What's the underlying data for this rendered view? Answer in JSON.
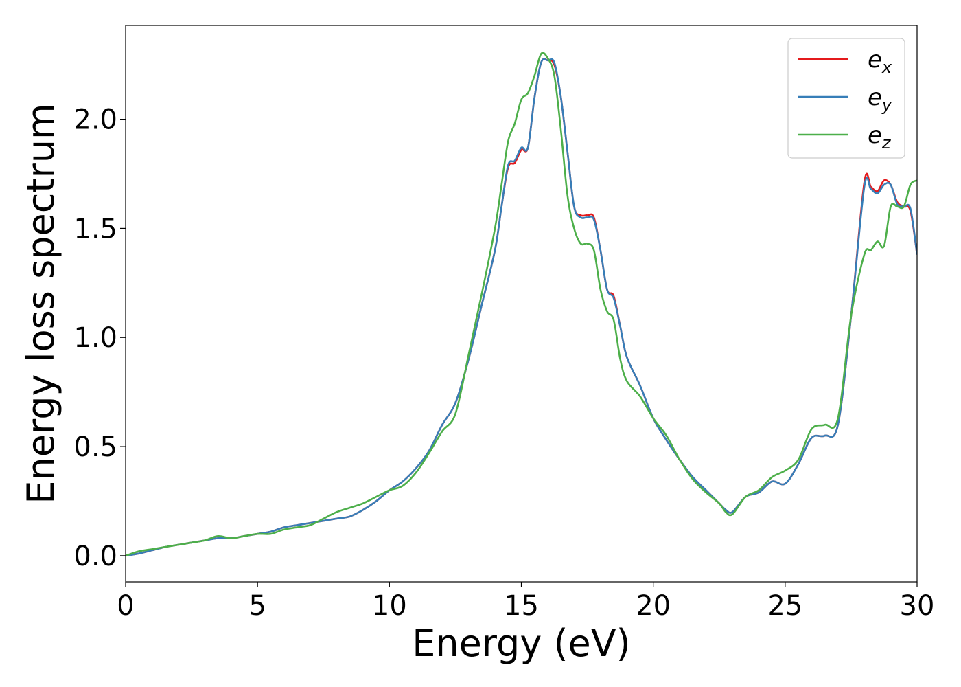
{
  "chart_data": {
    "type": "line",
    "title": "",
    "xlabel": "Energy (eV)",
    "ylabel": "Energy loss spectrum",
    "xlim": [
      0,
      30
    ],
    "ylim": [
      -0.12,
      2.43
    ],
    "xticks": [
      0,
      5,
      10,
      15,
      20,
      25,
      30
    ],
    "xtick_labels": [
      "0",
      "5",
      "10",
      "15",
      "20",
      "25",
      "30"
    ],
    "yticks": [
      0.0,
      0.5,
      1.0,
      1.5,
      2.0
    ],
    "ytick_labels": [
      "0.0",
      "0.5",
      "1.0",
      "1.5",
      "2.0"
    ],
    "grid": false,
    "legend_position": "top-right",
    "x": [
      0,
      0.5,
      1,
      1.5,
      2,
      2.5,
      3,
      3.5,
      4,
      4.5,
      5,
      5.5,
      6,
      6.5,
      7,
      7.5,
      8,
      8.5,
      9,
      9.5,
      10,
      10.5,
      11,
      11.5,
      12,
      12.5,
      13,
      13.5,
      14,
      14.25,
      14.5,
      14.75,
      15,
      15.25,
      15.5,
      15.75,
      16,
      16.25,
      16.5,
      16.75,
      17,
      17.25,
      17.5,
      17.75,
      18,
      18.25,
      18.5,
      18.75,
      19,
      19.5,
      20,
      20.5,
      21,
      21.5,
      22,
      22.5,
      22.75,
      23,
      23.5,
      24,
      24.5,
      25,
      25.5,
      26,
      26.5,
      27,
      27.5,
      28,
      28.25,
      28.5,
      28.75,
      29,
      29.25,
      29.5,
      29.75,
      30
    ],
    "series": [
      {
        "name": "e",
        "subscript": "x",
        "color": "#e41a1c",
        "values": [
          0.0,
          0.01,
          0.025,
          0.04,
          0.05,
          0.06,
          0.07,
          0.08,
          0.08,
          0.09,
          0.1,
          0.11,
          0.13,
          0.14,
          0.15,
          0.16,
          0.17,
          0.18,
          0.21,
          0.25,
          0.3,
          0.34,
          0.4,
          0.48,
          0.6,
          0.7,
          0.9,
          1.15,
          1.4,
          1.6,
          1.78,
          1.8,
          1.86,
          1.87,
          2.1,
          2.26,
          2.27,
          2.25,
          2.1,
          1.85,
          1.6,
          1.56,
          1.56,
          1.55,
          1.4,
          1.22,
          1.19,
          1.05,
          0.91,
          0.78,
          0.63,
          0.53,
          0.44,
          0.36,
          0.3,
          0.24,
          0.21,
          0.2,
          0.27,
          0.29,
          0.34,
          0.33,
          0.42,
          0.54,
          0.55,
          0.6,
          1.1,
          1.71,
          1.69,
          1.67,
          1.72,
          1.7,
          1.62,
          1.6,
          1.58,
          1.38
        ]
      },
      {
        "name": "e",
        "subscript": "y",
        "color": "#377eb8",
        "values": [
          0.0,
          0.01,
          0.025,
          0.04,
          0.05,
          0.06,
          0.07,
          0.08,
          0.08,
          0.09,
          0.1,
          0.11,
          0.13,
          0.14,
          0.15,
          0.16,
          0.17,
          0.18,
          0.21,
          0.25,
          0.3,
          0.34,
          0.4,
          0.48,
          0.6,
          0.7,
          0.9,
          1.15,
          1.4,
          1.6,
          1.79,
          1.81,
          1.87,
          1.87,
          2.1,
          2.26,
          2.27,
          2.26,
          2.1,
          1.85,
          1.6,
          1.55,
          1.55,
          1.54,
          1.4,
          1.22,
          1.18,
          1.05,
          0.91,
          0.78,
          0.63,
          0.53,
          0.44,
          0.36,
          0.3,
          0.24,
          0.21,
          0.2,
          0.27,
          0.29,
          0.34,
          0.33,
          0.42,
          0.54,
          0.55,
          0.6,
          1.1,
          1.69,
          1.68,
          1.66,
          1.7,
          1.7,
          1.61,
          1.6,
          1.59,
          1.38
        ]
      },
      {
        "name": "e",
        "subscript": "z",
        "color": "#4daf4a",
        "values": [
          0.0,
          0.02,
          0.03,
          0.04,
          0.05,
          0.06,
          0.07,
          0.09,
          0.08,
          0.09,
          0.1,
          0.1,
          0.12,
          0.13,
          0.14,
          0.17,
          0.2,
          0.22,
          0.24,
          0.27,
          0.3,
          0.32,
          0.38,
          0.47,
          0.57,
          0.65,
          0.92,
          1.2,
          1.5,
          1.7,
          1.9,
          1.98,
          2.09,
          2.12,
          2.2,
          2.3,
          2.28,
          2.2,
          1.95,
          1.65,
          1.5,
          1.43,
          1.43,
          1.4,
          1.22,
          1.12,
          1.08,
          0.9,
          0.8,
          0.73,
          0.63,
          0.55,
          0.44,
          0.35,
          0.29,
          0.24,
          0.2,
          0.19,
          0.27,
          0.3,
          0.36,
          0.39,
          0.44,
          0.58,
          0.6,
          0.63,
          1.1,
          1.38,
          1.4,
          1.44,
          1.42,
          1.6,
          1.6,
          1.6,
          1.7,
          1.72
        ]
      }
    ]
  }
}
